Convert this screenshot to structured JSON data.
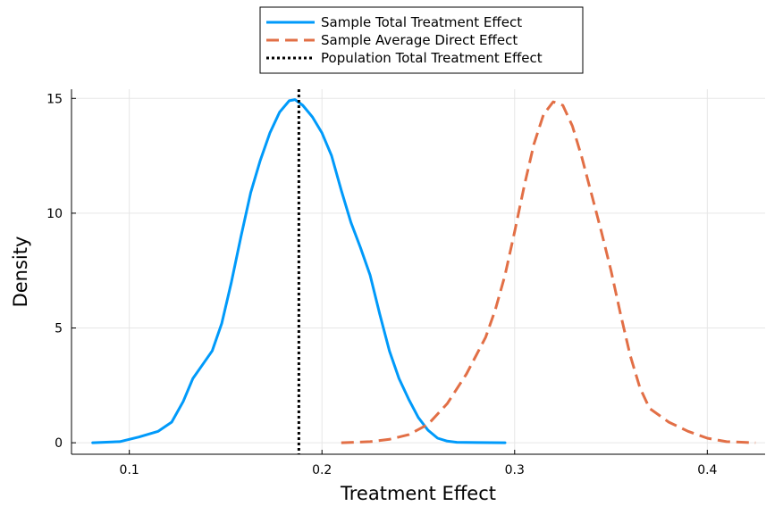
{
  "chart_data": {
    "type": "line",
    "xlabel": "Treatment Effect",
    "ylabel": "Density",
    "xlim": [
      0.07,
      0.43
    ],
    "ylim": [
      -0.5,
      15.4
    ],
    "xticks": [
      0.1,
      0.2,
      0.3,
      0.4
    ],
    "xtick_labels": [
      "0.1",
      "0.2",
      "0.3",
      "0.4"
    ],
    "yticks": [
      0,
      5,
      10,
      15
    ],
    "ytick_labels": [
      "0",
      "5",
      "10",
      "15"
    ],
    "grid": true,
    "legend_position": "top-center, outside plot",
    "series": [
      {
        "name": "Sample Total Treatment Effect",
        "style": "solid",
        "color": "#009AFA",
        "x": [
          0.081,
          0.095,
          0.105,
          0.115,
          0.122,
          0.128,
          0.133,
          0.138,
          0.143,
          0.148,
          0.153,
          0.158,
          0.163,
          0.168,
          0.173,
          0.178,
          0.183,
          0.186,
          0.19,
          0.195,
          0.2,
          0.205,
          0.21,
          0.215,
          0.22,
          0.225,
          0.23,
          0.235,
          0.24,
          0.245,
          0.25,
          0.255,
          0.26,
          0.265,
          0.27,
          0.28,
          0.295
        ],
        "y": [
          0,
          0.05,
          0.25,
          0.5,
          0.9,
          1.8,
          2.8,
          3.4,
          4.0,
          5.2,
          7.0,
          9.0,
          10.9,
          12.3,
          13.5,
          14.4,
          14.9,
          14.95,
          14.7,
          14.2,
          13.5,
          12.5,
          11.0,
          9.6,
          8.5,
          7.3,
          5.6,
          4.0,
          2.8,
          1.9,
          1.1,
          0.55,
          0.2,
          0.07,
          0.02,
          0.01,
          0
        ]
      },
      {
        "name": "Sample Average Direct Effect",
        "style": "dashed",
        "color": "#E26F46",
        "x": [
          0.21,
          0.225,
          0.235,
          0.245,
          0.255,
          0.265,
          0.275,
          0.285,
          0.29,
          0.295,
          0.3,
          0.305,
          0.31,
          0.315,
          0.32,
          0.325,
          0.33,
          0.335,
          0.34,
          0.345,
          0.35,
          0.355,
          0.36,
          0.365,
          0.37,
          0.38,
          0.39,
          0.4,
          0.41,
          0.425
        ],
        "y": [
          0,
          0.05,
          0.15,
          0.35,
          0.8,
          1.7,
          3.0,
          4.6,
          5.8,
          7.3,
          9.2,
          11.2,
          13.0,
          14.3,
          14.85,
          14.7,
          13.8,
          12.4,
          10.8,
          9.2,
          7.5,
          5.6,
          3.8,
          2.4,
          1.5,
          0.9,
          0.5,
          0.2,
          0.05,
          0
        ]
      },
      {
        "name": "Population Total Treatment Effect",
        "style": "dotted",
        "color": "#000000",
        "type": "vline",
        "x_value": 0.188
      }
    ]
  }
}
